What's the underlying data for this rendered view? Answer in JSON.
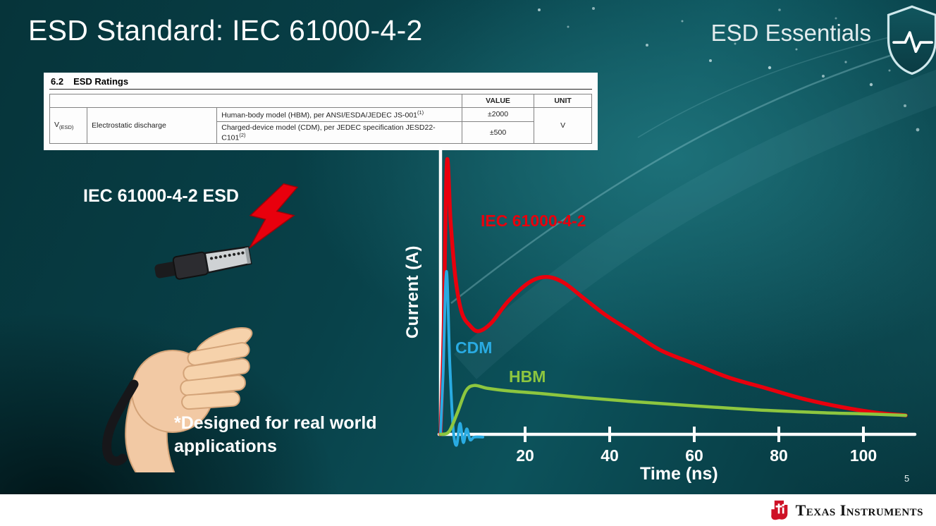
{
  "slide": {
    "title": "ESD Standard: IEC 61000-4-2",
    "series_label": "ESD Essentials",
    "page_number": "5"
  },
  "ratings_table": {
    "section_number": "6.2",
    "section_title": "ESD Ratings",
    "headers": {
      "value": "VALUE",
      "unit": "UNIT"
    },
    "param": {
      "symbol": "V",
      "symbol_sub": "(ESD)",
      "name": "Electrostatic discharge"
    },
    "rows": [
      {
        "description": "Human-body model (HBM), per ANSI/ESDA/JEDEC JS-001",
        "description_sup": "(1)",
        "value": "±2000"
      },
      {
        "description": "Charged-device model (CDM), per JEDEC specification JESD22-C101",
        "description_sup": "(2)",
        "value": "±500"
      }
    ],
    "unit": "V"
  },
  "illustration": {
    "heading": "IEC 61000-4-2 ESD",
    "note": "*Designed for real world applications"
  },
  "footer": {
    "brand": "Texas Instruments"
  },
  "icons": {
    "shield": "shield-pulse-icon",
    "bolt": "lightning-bolt-icon",
    "ti_bug": "ti-logo-icon"
  },
  "theme": {
    "background_teal": "#0c525b",
    "text": "#ffffff",
    "iec_red": "#e8000d",
    "cdm_blue": "#29abe2",
    "hbm_green": "#8dc63f"
  },
  "chart_data": {
    "type": "line",
    "title": "",
    "xlabel": "Time (ns)",
    "ylabel": "Current (A)",
    "xlim": [
      0,
      112
    ],
    "ylim": [
      -8,
      105
    ],
    "x_ticks": [
      20,
      40,
      60,
      80,
      100
    ],
    "grid": false,
    "legend_position": "inline-labels",
    "series": [
      {
        "name": "IEC 61000-4-2",
        "color": "#e8000d",
        "stroke_width": 5.5,
        "points": [
          [
            0,
            0
          ],
          [
            0.7,
            35
          ],
          [
            1.5,
            100
          ],
          [
            2.4,
            78
          ],
          [
            3.5,
            58
          ],
          [
            5,
            45
          ],
          [
            7,
            40
          ],
          [
            9,
            38
          ],
          [
            12,
            41
          ],
          [
            16,
            49
          ],
          [
            21,
            56
          ],
          [
            25,
            58
          ],
          [
            29,
            56
          ],
          [
            34,
            50
          ],
          [
            39,
            44
          ],
          [
            45,
            38
          ],
          [
            52,
            31
          ],
          [
            60,
            26
          ],
          [
            68,
            21
          ],
          [
            77,
            17
          ],
          [
            86,
            13
          ],
          [
            95,
            10
          ],
          [
            103,
            8
          ],
          [
            110,
            7
          ]
        ]
      },
      {
        "name": "CDM",
        "color": "#29abe2",
        "stroke_width": 4,
        "points": [
          [
            0,
            0
          ],
          [
            0.6,
            22
          ],
          [
            1.4,
            60
          ],
          [
            2.2,
            26
          ],
          [
            3,
            2
          ],
          [
            3.8,
            -4
          ],
          [
            4.6,
            4
          ],
          [
            5.4,
            -3
          ],
          [
            6.2,
            2
          ],
          [
            7,
            -2
          ],
          [
            8,
            -1
          ],
          [
            10,
            -1
          ]
        ]
      },
      {
        "name": "HBM",
        "color": "#8dc63f",
        "stroke_width": 4.5,
        "points": [
          [
            0,
            0
          ],
          [
            2,
            1
          ],
          [
            4,
            8
          ],
          [
            6,
            16
          ],
          [
            8,
            18
          ],
          [
            11,
            17
          ],
          [
            16,
            16
          ],
          [
            24,
            15
          ],
          [
            34,
            13.5
          ],
          [
            46,
            12
          ],
          [
            60,
            10.5
          ],
          [
            75,
            9
          ],
          [
            90,
            8
          ],
          [
            101,
            7.5
          ],
          [
            110,
            7
          ]
        ]
      }
    ]
  }
}
